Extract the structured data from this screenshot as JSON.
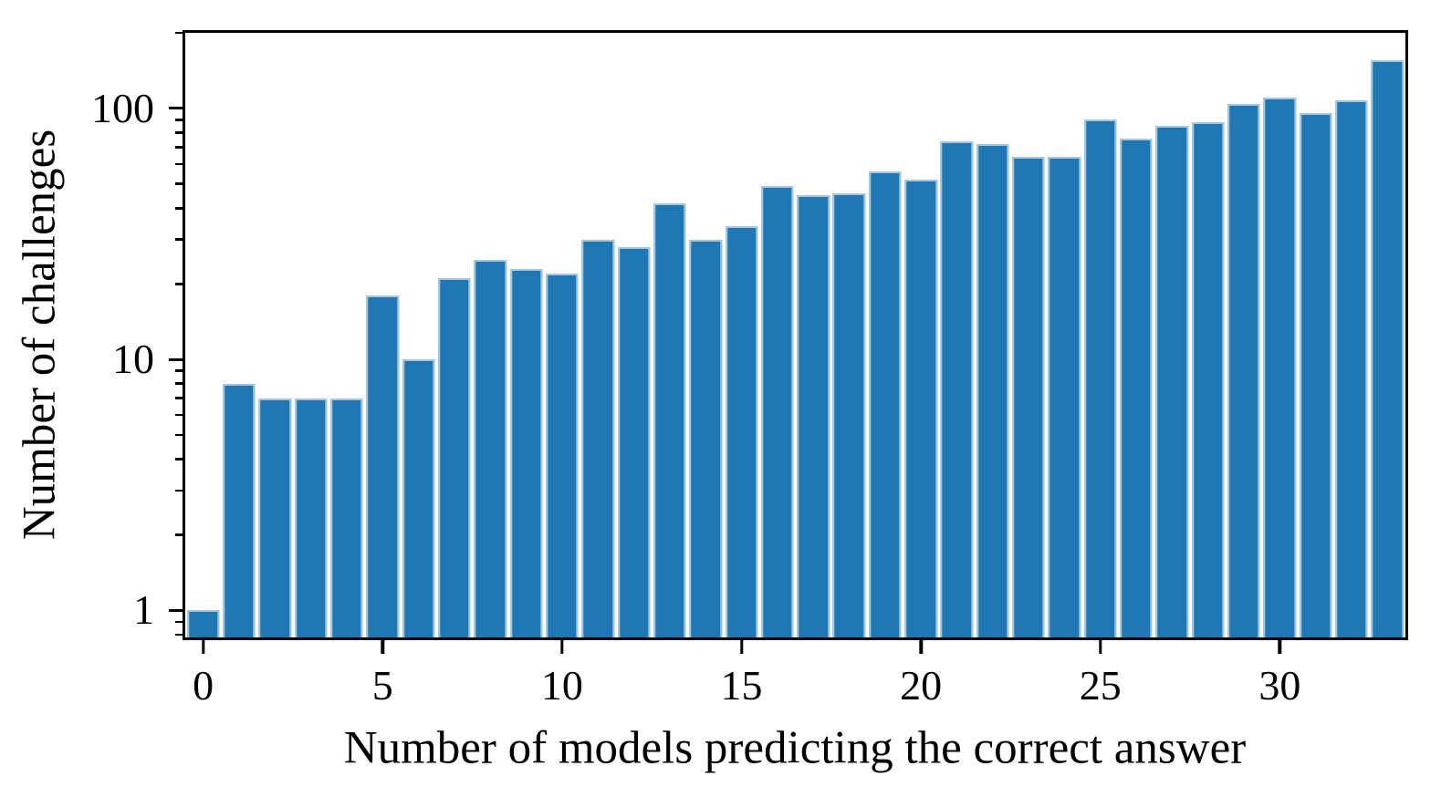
{
  "chart_data": {
    "type": "bar",
    "title": "",
    "xlabel": "Number of models predicting the correct answer",
    "ylabel": "Number of challenges",
    "yscale": "log",
    "grid": false,
    "legend": null,
    "x": [
      0,
      1,
      2,
      3,
      4,
      5,
      6,
      7,
      8,
      9,
      10,
      11,
      12,
      13,
      14,
      15,
      16,
      17,
      18,
      19,
      20,
      21,
      22,
      23,
      24,
      25,
      26,
      27,
      28,
      29,
      30,
      31,
      32,
      33
    ],
    "values": [
      1,
      8,
      7,
      7,
      7,
      18,
      10,
      21,
      25,
      23,
      22,
      30,
      28,
      42,
      30,
      34,
      49,
      45,
      46,
      56,
      52,
      74,
      72,
      64,
      64,
      90,
      76,
      85,
      88,
      104,
      110,
      96,
      108,
      155
    ],
    "xticks": [
      0,
      5,
      10,
      15,
      20,
      25,
      30
    ],
    "yticks": [
      1,
      10,
      100
    ],
    "ytick_labels": [
      "1",
      "10",
      "100"
    ],
    "yminorticks": [
      0.8,
      0.9,
      2,
      3,
      4,
      5,
      6,
      7,
      8,
      9,
      20,
      30,
      40,
      50,
      60,
      70,
      80,
      90,
      200
    ],
    "ylim": [
      0.78,
      200
    ],
    "xlim": [
      -0.57,
      33.57
    ],
    "bar_width_fraction": 0.9,
    "bar_color": "#1f77b4",
    "bar_edge_color": "#a4c7e1",
    "axis_color": "#000000",
    "background_color": "#ffffff"
  }
}
